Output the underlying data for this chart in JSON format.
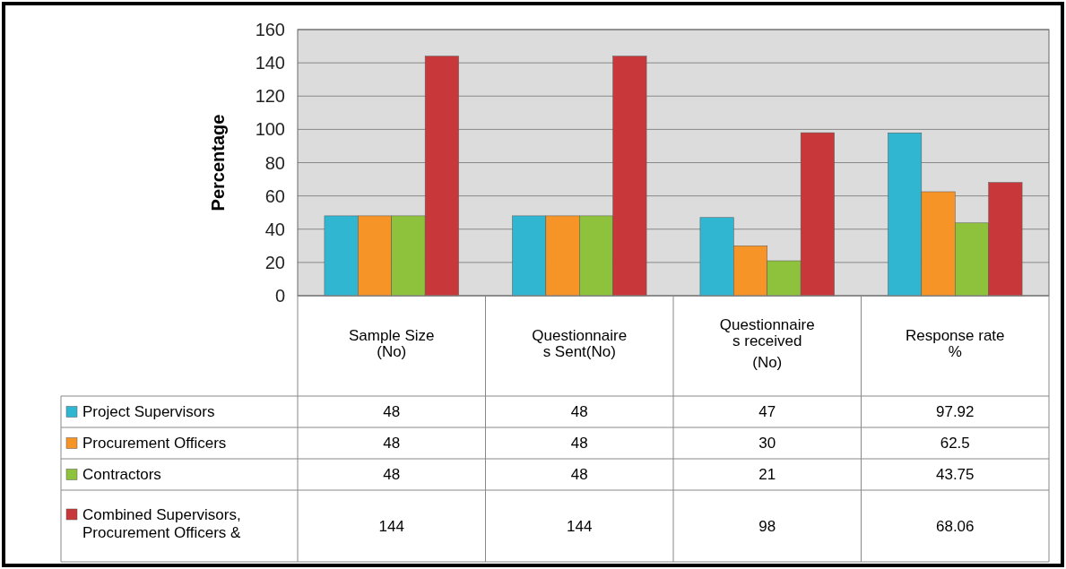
{
  "chart_data": {
    "type": "bar",
    "ylabel": "Percentage",
    "categories": [
      "Sample Size (No)",
      "Questionnaire s Sent(No)",
      "Questionnaire s received (No)",
      "Response rate %"
    ],
    "series": [
      {
        "name": "Project Supervisors",
        "color": "#31b6d1",
        "values": [
          48,
          48,
          47,
          97.92
        ]
      },
      {
        "name": "Procurement Officers",
        "color": "#f79428",
        "values": [
          48,
          48,
          30,
          62.5
        ]
      },
      {
        "name": "Contractors",
        "color": "#8fc23c",
        "values": [
          48,
          48,
          21,
          43.75
        ]
      },
      {
        "name": "Combined Supervisors, Procurement Officers &",
        "color": "#c8383a",
        "values": [
          144,
          144,
          98,
          68.06
        ]
      }
    ],
    "ylim": [
      0,
      160
    ],
    "yticks": [
      0,
      20,
      40,
      60,
      80,
      100,
      120,
      140,
      160
    ],
    "grid": "y",
    "data_labels": true,
    "legend": "bottom"
  }
}
